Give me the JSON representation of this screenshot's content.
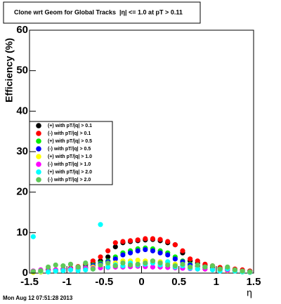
{
  "chart_data": {
    "type": "scatter",
    "title": "Clone wrt Geom for Global Tracks",
    "subtitle": "|η| <= 1.0 at pT > 0.11",
    "xlabel": "η",
    "ylabel": "Efficiency (%)",
    "footer": "Mon Aug 12 07:51:28 2013",
    "xlim": [
      -1.5,
      1.5
    ],
    "ylim": [
      0,
      60
    ],
    "xticks": [
      -1.5,
      -1,
      -0.5,
      0,
      0.5,
      1,
      1.5
    ],
    "yticks": [
      0,
      10,
      20,
      30,
      40,
      50,
      60
    ],
    "x": [
      -1.45,
      -1.35,
      -1.25,
      -1.15,
      -1.05,
      -0.95,
      -0.85,
      -0.75,
      -0.65,
      -0.55,
      -0.45,
      -0.35,
      -0.25,
      -0.15,
      -0.05,
      0.05,
      0.15,
      0.25,
      0.35,
      0.45,
      0.55,
      0.65,
      0.75,
      0.85,
      0.95,
      1.05,
      1.15,
      1.25,
      1.35,
      1.45
    ],
    "series": [
      {
        "name": "(+) with pT/|q| > 0.1",
        "color": "#000000",
        "values": [
          0.5,
          0.3,
          0.8,
          0.5,
          0.9,
          1.2,
          1.5,
          2.0,
          2.5,
          3.0,
          4.0,
          6.5,
          7.5,
          7.8,
          8.0,
          8.2,
          8.3,
          8.0,
          7.5,
          7.0,
          5.0,
          3.0,
          2.5,
          2.0,
          1.5,
          1.2,
          1.0,
          0.8,
          0.6,
          0.5
        ]
      },
      {
        "name": "(-) with pT/|q| > 0.1",
        "color": "#ff0000",
        "values": [
          0.3,
          0.5,
          0.6,
          0.8,
          1.0,
          1.2,
          1.6,
          2.2,
          3.0,
          4.0,
          5.5,
          7.5,
          7.8,
          8.0,
          8.2,
          8.5,
          8.5,
          8.3,
          7.8,
          7.0,
          5.5,
          3.5,
          3.0,
          2.2,
          1.8,
          1.4,
          1.2,
          1.0,
          0.8,
          0.5
        ]
      },
      {
        "name": "(+) with pT/|q| > 0.5",
        "color": "#00ee00",
        "values": [
          0.2,
          0.4,
          0.5,
          0.8,
          1.0,
          1.0,
          1.2,
          1.5,
          2.0,
          2.5,
          3.0,
          4.0,
          5.0,
          5.5,
          6.0,
          6.2,
          6.0,
          5.5,
          5.0,
          4.0,
          3.0,
          2.2,
          1.8,
          1.5,
          1.2,
          1.0,
          0.8,
          0.6,
          0.4,
          0.3
        ]
      },
      {
        "name": "(-) with pT/|q| > 0.5",
        "color": "#0000ff",
        "values": [
          0.3,
          0.5,
          0.6,
          0.7,
          0.8,
          1.0,
          1.1,
          1.4,
          1.8,
          2.2,
          2.8,
          3.5,
          4.5,
          5.0,
          5.5,
          5.8,
          5.5,
          5.0,
          4.5,
          3.5,
          2.8,
          2.0,
          1.6,
          1.3,
          1.0,
          0.9,
          0.7,
          0.5,
          0.4,
          0.2
        ]
      },
      {
        "name": "(+) with pT/|q| > 1.0",
        "color": "#ffff00",
        "values": [
          0.2,
          0.3,
          0.5,
          0.6,
          0.8,
          0.9,
          1.0,
          1.2,
          1.5,
          1.8,
          2.0,
          2.5,
          3.0,
          3.0,
          3.2,
          3.0,
          3.0,
          2.8,
          2.5,
          2.2,
          1.8,
          1.5,
          1.2,
          1.0,
          0.9,
          0.8,
          0.6,
          0.5,
          0.3,
          0.2
        ]
      },
      {
        "name": "(-) with pT/|q| > 1.0",
        "color": "#ff00ff",
        "values": [
          0.5,
          0.8,
          0.6,
          0.8,
          0.9,
          1.0,
          1.0,
          1.1,
          1.2,
          1.3,
          1.4,
          1.5,
          1.5,
          1.6,
          1.7,
          1.6,
          1.5,
          1.5,
          1.4,
          1.3,
          1.2,
          1.1,
          1.0,
          1.0,
          0.9,
          0.8,
          0.7,
          0.6,
          0.5,
          0.3
        ]
      },
      {
        "name": "(+) with pT/|q| > 2.0",
        "color": "#00ffff",
        "values": [
          9.0,
          0.5,
          0.3,
          0.5,
          0.6,
          0.8,
          0.6,
          0.8,
          1.0,
          12.0,
          1.5,
          2.0,
          1.8,
          2.5,
          2.0,
          2.2,
          2.5,
          2.0,
          2.8,
          1.5,
          1.8,
          1.2,
          1.0,
          1.5,
          0.8,
          0.5,
          1.0,
          0.5,
          0.3,
          0.2
        ]
      },
      {
        "name": "(-) with pT/|q| > 2.0",
        "color": "#5fc858",
        "values": [
          0.4,
          0.6,
          1.5,
          2.0,
          1.8,
          2.2,
          1.5,
          2.5,
          1.0,
          2.0,
          2.5,
          1.8,
          2.5,
          2.0,
          2.2,
          2.5,
          3.0,
          2.5,
          2.0,
          1.8,
          2.2,
          1.5,
          2.0,
          1.5,
          1.8,
          1.0,
          1.5,
          0.8,
          0.5,
          0.3
        ]
      }
    ]
  }
}
